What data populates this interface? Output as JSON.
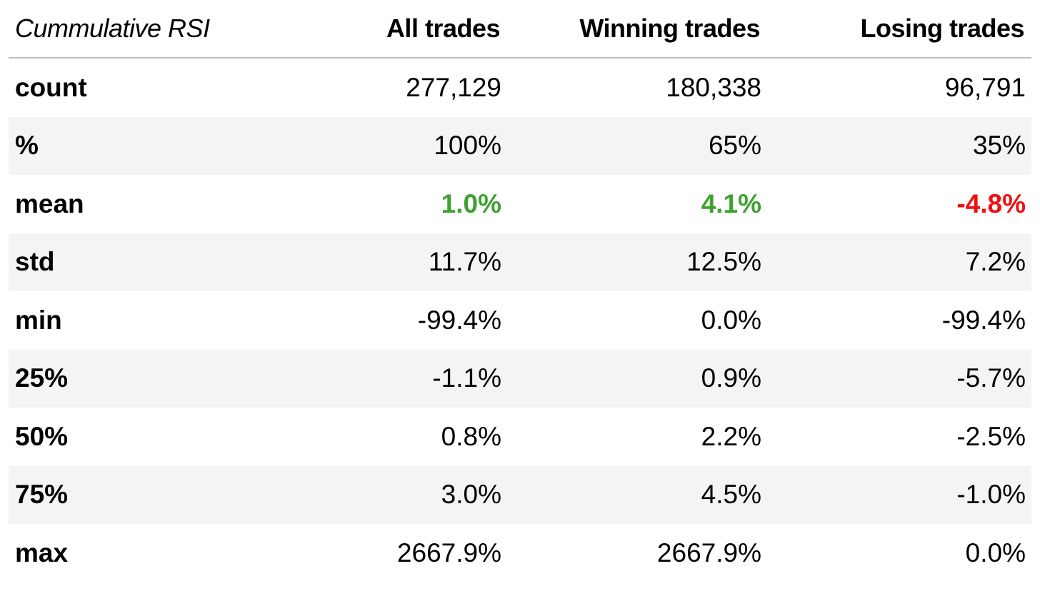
{
  "table": {
    "index_name": "Cummulative RSI",
    "columns": [
      "All trades",
      "Winning trades",
      "Losing trades"
    ],
    "rows": [
      {
        "label": "count",
        "values": [
          "277,129",
          "180,338",
          "96,791"
        ],
        "styles": [
          "",
          "",
          ""
        ]
      },
      {
        "label": "%",
        "values": [
          "100%",
          "65%",
          "35%"
        ],
        "styles": [
          "",
          "",
          ""
        ]
      },
      {
        "label": "mean",
        "values": [
          "1.0%",
          "4.1%",
          "-4.8%"
        ],
        "styles": [
          "pos",
          "pos",
          "neg"
        ]
      },
      {
        "label": "std",
        "values": [
          "11.7%",
          "12.5%",
          "7.2%"
        ],
        "styles": [
          "",
          "",
          ""
        ]
      },
      {
        "label": "min",
        "values": [
          "-99.4%",
          "0.0%",
          "-99.4%"
        ],
        "styles": [
          "",
          "",
          ""
        ]
      },
      {
        "label": "25%",
        "values": [
          "-1.1%",
          "0.9%",
          "-5.7%"
        ],
        "styles": [
          "",
          "",
          ""
        ]
      },
      {
        "label": "50%",
        "values": [
          "0.8%",
          "2.2%",
          "-2.5%"
        ],
        "styles": [
          "",
          "",
          ""
        ]
      },
      {
        "label": "75%",
        "values": [
          "3.0%",
          "4.5%",
          "-1.0%"
        ],
        "styles": [
          "",
          "",
          ""
        ]
      },
      {
        "label": "max",
        "values": [
          "2667.9%",
          "2667.9%",
          "0.0%"
        ],
        "styles": [
          "",
          "",
          ""
        ]
      }
    ]
  },
  "colors": {
    "positive": "#3ea22f",
    "negative": "#f01010",
    "stripe": "#f4f4f4",
    "header_rule": "#bdbdbd"
  }
}
